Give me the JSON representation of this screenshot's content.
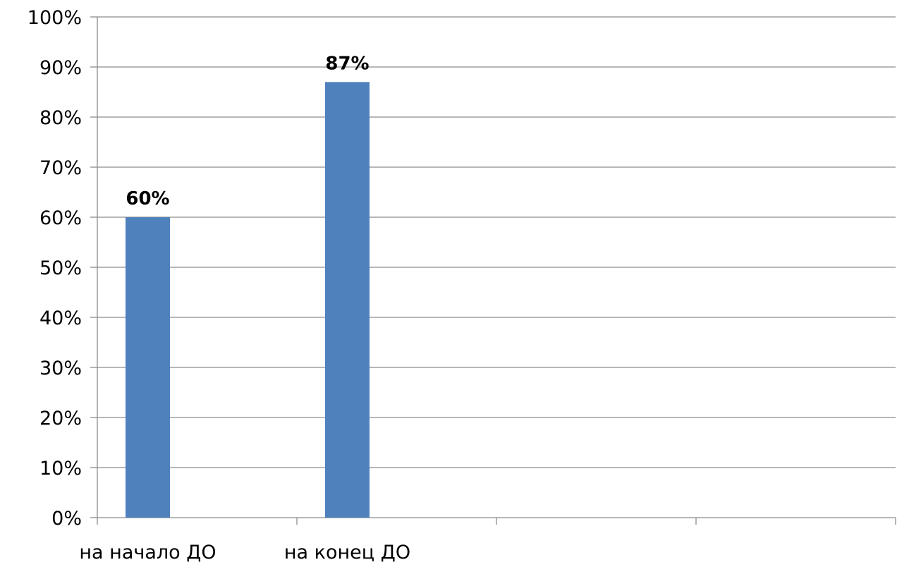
{
  "chart_data": {
    "type": "bar",
    "title": "",
    "xlabel": "",
    "ylabel": "",
    "categories": [
      "на начало ДО",
      "на конец ДО",
      "",
      ""
    ],
    "values": [
      60,
      87,
      null,
      null
    ],
    "data_labels": [
      "60%",
      "87%",
      "",
      ""
    ],
    "ylim": [
      0,
      100
    ],
    "yticks": [
      "0%",
      "10%",
      "20%",
      "30%",
      "40%",
      "50%",
      "60%",
      "70%",
      "80%",
      "90%",
      "100%"
    ],
    "grid": true,
    "legend": "none",
    "bar_color": "#4f81bd"
  }
}
